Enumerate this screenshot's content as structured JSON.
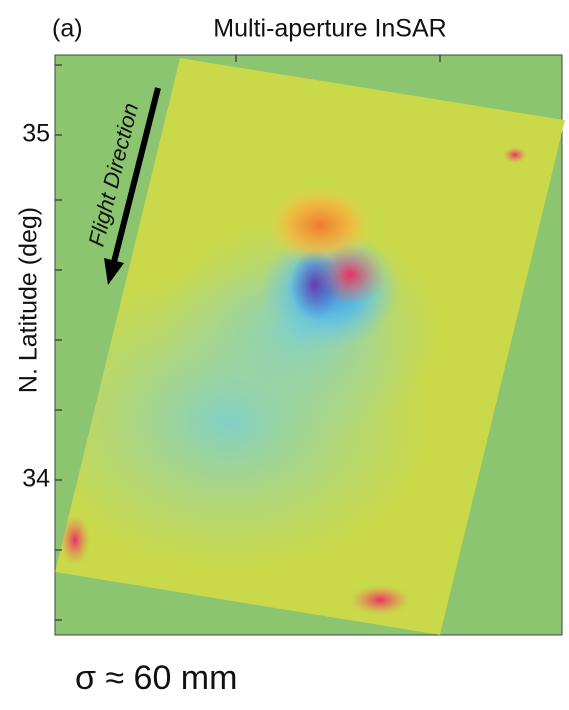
{
  "panel_label": "(a)",
  "title": "Multi-aperture InSAR",
  "y_axis_label": "N. Latitude (deg)",
  "y_tick_labels": [
    "35",
    "34"
  ],
  "annotation": "Flight Direction",
  "caption": "σ ≈ 60 mm"
}
